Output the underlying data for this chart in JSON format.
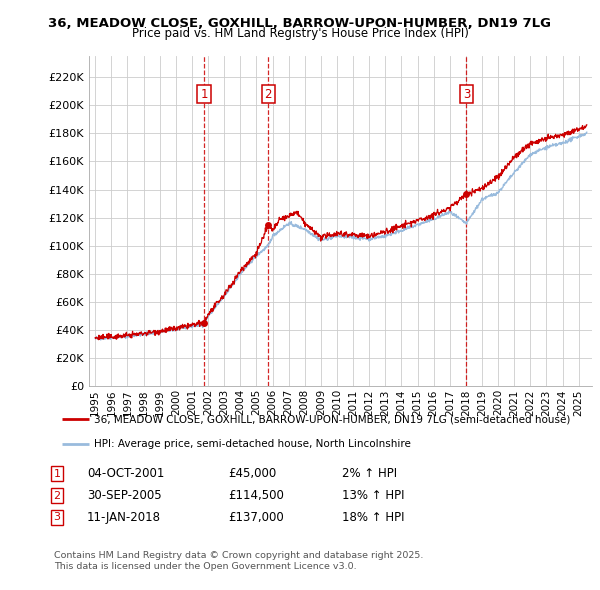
{
  "title1": "36, MEADOW CLOSE, GOXHILL, BARROW-UPON-HUMBER, DN19 7LG",
  "title2": "Price paid vs. HM Land Registry's House Price Index (HPI)",
  "yticks": [
    0,
    20000,
    40000,
    60000,
    80000,
    100000,
    120000,
    140000,
    160000,
    180000,
    200000,
    220000
  ],
  "ytick_labels": [
    "£0",
    "£20K",
    "£40K",
    "£60K",
    "£80K",
    "£100K",
    "£120K",
    "£140K",
    "£160K",
    "£180K",
    "£200K",
    "£220K"
  ],
  "xmin": 1994.6,
  "xmax": 2025.8,
  "ymin": 0,
  "ymax": 235000,
  "sale_dates_num": [
    2001.75,
    2005.74,
    2018.03
  ],
  "sale_prices": [
    45000,
    114500,
    137000
  ],
  "sale_labels": [
    "1",
    "2",
    "3"
  ],
  "sale_info": [
    {
      "label": "1",
      "date": "04-OCT-2001",
      "price": "£45,000",
      "change": "2% ↑ HPI"
    },
    {
      "label": "2",
      "date": "30-SEP-2005",
      "price": "£114,500",
      "change": "13% ↑ HPI"
    },
    {
      "label": "3",
      "date": "11-JAN-2018",
      "price": "£137,000",
      "change": "18% ↑ HPI"
    }
  ],
  "legend_line1": "36, MEADOW CLOSE, GOXHILL, BARROW-UPON-HUMBER, DN19 7LG (semi-detached house)",
  "legend_line2": "HPI: Average price, semi-detached house, North Lincolnshire",
  "footer1": "Contains HM Land Registry data © Crown copyright and database right 2025.",
  "footer2": "This data is licensed under the Open Government Licence v3.0.",
  "red_color": "#cc0000",
  "blue_color": "#99bbdd",
  "background_color": "#ffffff",
  "plot_bg_color": "#ffffff",
  "grid_color": "#cccccc"
}
